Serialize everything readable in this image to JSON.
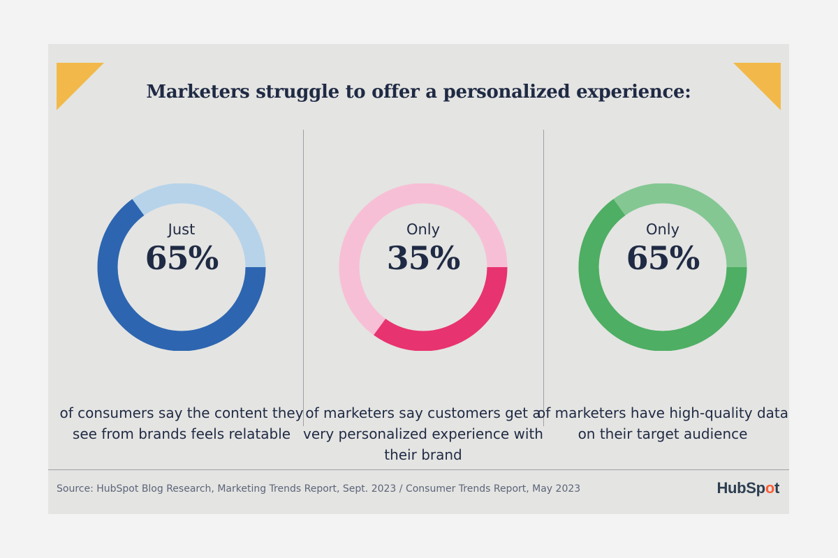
{
  "title": "Marketers struggle to offer a personalized experience:",
  "colors": {
    "background": "#e4e4e2",
    "accent_corner": "#f2b94a",
    "blue_dark": "#2d65b0",
    "blue_light": "#b6d3ea",
    "pink_dark": "#e7336f",
    "pink_light": "#f7bfd5",
    "green_dark": "#4eae63",
    "green_light": "#84c793",
    "logo_orange": "#ff5c35"
  },
  "stats": [
    {
      "prefix": "Just",
      "value_label": "65%",
      "description": "of consumers say the content they see from brands feels relatable"
    },
    {
      "prefix": "Only",
      "value_label": "35%",
      "description": "of marketers say customers get a very personalized experience with their brand"
    },
    {
      "prefix": "Only",
      "value_label": "65%",
      "description": "of marketers have high-quality data on their target audience"
    }
  ],
  "chart_data": [
    {
      "type": "pie",
      "title": "",
      "labels": [
        "of consumers say the content they see from brands feels relatable",
        ""
      ],
      "values": [
        65,
        35
      ],
      "colors": [
        "#2d65b0",
        "#b6d3ea"
      ]
    },
    {
      "type": "pie",
      "title": "",
      "labels": [
        "of marketers say customers get a very personalized experience with their brand",
        ""
      ],
      "values": [
        35,
        65
      ],
      "colors": [
        "#e7336f",
        "#f7bfd5"
      ]
    },
    {
      "type": "pie",
      "title": "",
      "labels": [
        "of marketers have high-quality data on their target audience",
        ""
      ],
      "values": [
        65,
        35
      ],
      "colors": [
        "#4eae63",
        "#84c793"
      ]
    }
  ],
  "footer": {
    "source": "Source: HubSpot Blog Research, Marketing Trends Report, Sept. 2023 / Consumer Trends Report, May 2023",
    "logo_left": "HubSp",
    "logo_sprocket": "o",
    "logo_right": "t"
  }
}
